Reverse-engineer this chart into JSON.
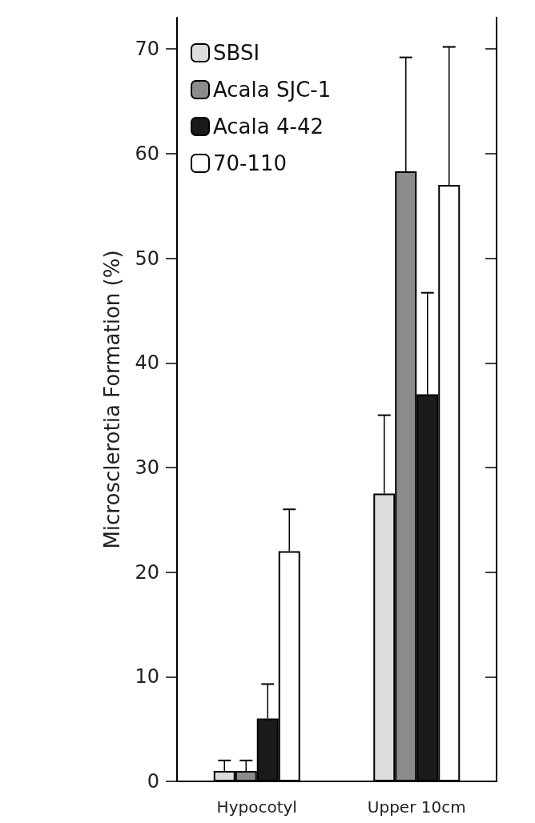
{
  "chart_data": {
    "type": "bar",
    "ylabel": "Microsclerotia Formation (%)",
    "categories": [
      "Hypocotyl",
      "Upper 10cm"
    ],
    "series": [
      {
        "name": "SBSI",
        "color": "#dcdcdc",
        "values": [
          1,
          27.5
        ],
        "errors": [
          [
            1,
            2
          ],
          [
            27.5,
            35
          ]
        ]
      },
      {
        "name": "Acala SJC-1",
        "color": "#8c8c8c",
        "values": [
          1,
          58.3
        ],
        "errors": [
          [
            1,
            2
          ],
          [
            58.3,
            69.2
          ]
        ]
      },
      {
        "name": "Acala 4-42",
        "color": "#1a1a1a",
        "values": [
          6,
          37
        ],
        "errors": [
          [
            6,
            9.3
          ],
          [
            37,
            46.7
          ]
        ]
      },
      {
        "name": "70-110",
        "color": "#ffffff",
        "values": [
          22,
          57
        ],
        "errors": [
          [
            22,
            26
          ],
          [
            57,
            70.2
          ]
        ]
      }
    ],
    "ylim": [
      0,
      73
    ],
    "yticks": [
      0,
      10,
      20,
      30,
      40,
      50,
      60,
      70
    ],
    "grid": false,
    "legend": "top left"
  }
}
